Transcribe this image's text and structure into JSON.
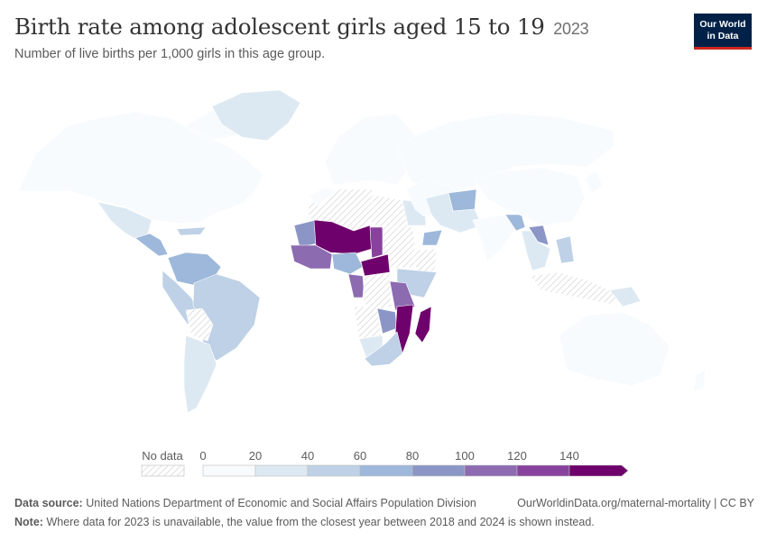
{
  "header": {
    "title": "Birth rate among adolescent girls aged 15 to 19",
    "year": "2023",
    "subtitle": "Number of live births per 1,000 girls in this age group."
  },
  "logo": {
    "line1": "Our World",
    "line2": "in Data"
  },
  "legend": {
    "no_data_label": "No data",
    "ticks": [
      "0",
      "20",
      "40",
      "60",
      "80",
      "100",
      "120",
      "140"
    ],
    "bins": [
      {
        "from": 0,
        "to": 20,
        "color": "#f7fbfd"
      },
      {
        "from": 20,
        "to": 40,
        "color": "#dde9f2"
      },
      {
        "from": 40,
        "to": 60,
        "color": "#bed1e6"
      },
      {
        "from": 60,
        "to": 80,
        "color": "#9db8da"
      },
      {
        "from": 80,
        "to": 100,
        "color": "#8c96c6"
      },
      {
        "from": 100,
        "to": 120,
        "color": "#8c6bb1"
      },
      {
        "from": 120,
        "to": 140,
        "color": "#88419d"
      },
      {
        "from": 140,
        "to": null,
        "color": "#6e016b"
      }
    ]
  },
  "map": {
    "regions": [
      {
        "name": "North America",
        "bin": 0
      },
      {
        "name": "Greenland",
        "bin": 1
      },
      {
        "name": "Mexico",
        "bin": 1
      },
      {
        "name": "Central America",
        "bin": 3
      },
      {
        "name": "Caribbean",
        "bin": 2
      },
      {
        "name": "Colombia & Venezuela",
        "bin": 3
      },
      {
        "name": "Peru & Ecuador",
        "bin": 2
      },
      {
        "name": "Brazil",
        "bin": 2
      },
      {
        "name": "Bolivia",
        "bin": null
      },
      {
        "name": "Argentina & Chile",
        "bin": 1
      },
      {
        "name": "Europe",
        "bin": 0
      },
      {
        "name": "Russia & Central Asia",
        "bin": 0
      },
      {
        "name": "Western Sahara & Algeria",
        "bin": null
      },
      {
        "name": "Morocco",
        "bin": 0
      },
      {
        "name": "Libya",
        "bin": null
      },
      {
        "name": "Egypt",
        "bin": 1
      },
      {
        "name": "Mauritania",
        "bin": 4
      },
      {
        "name": "Mali & Niger",
        "bin": 7
      },
      {
        "name": "Chad",
        "bin": 6
      },
      {
        "name": "Sudan",
        "bin": null
      },
      {
        "name": "West Africa coast",
        "bin": 5
      },
      {
        "name": "Nigeria",
        "bin": 3
      },
      {
        "name": "Central African Republic",
        "bin": 7
      },
      {
        "name": "Ethiopia",
        "bin": null
      },
      {
        "name": "Cameroon & Gabon",
        "bin": 5
      },
      {
        "name": "DR Congo",
        "bin": null
      },
      {
        "name": "Kenya & Somalia",
        "bin": 2
      },
      {
        "name": "Tanzania",
        "bin": 5
      },
      {
        "name": "Angola",
        "bin": null
      },
      {
        "name": "Zambia",
        "bin": 4
      },
      {
        "name": "Mozambique",
        "bin": 7
      },
      {
        "name": "Madagascar",
        "bin": 7
      },
      {
        "name": "Namibia",
        "bin": 1
      },
      {
        "name": "Southern Africa",
        "bin": 2
      },
      {
        "name": "Middle East",
        "bin": 0
      },
      {
        "name": "Yemen",
        "bin": 3
      },
      {
        "name": "Afghanistan",
        "bin": 3
      },
      {
        "name": "Iran & Pakistan",
        "bin": 1
      },
      {
        "name": "India",
        "bin": 0
      },
      {
        "name": "Bangladesh",
        "bin": 3
      },
      {
        "name": "China & Mongolia",
        "bin": 0
      },
      {
        "name": "Laos",
        "bin": 4
      },
      {
        "name": "Mainland Southeast Asia",
        "bin": 1
      },
      {
        "name": "Philippines",
        "bin": 2
      },
      {
        "name": "Indonesia",
        "bin": null
      },
      {
        "name": "Papua New Guinea",
        "bin": 1
      },
      {
        "name": "Australia",
        "bin": 0
      },
      {
        "name": "New Zealand",
        "bin": 0
      },
      {
        "name": "Japan",
        "bin": 0
      }
    ]
  },
  "footer": {
    "source_label": "Data source:",
    "source_text": "United Nations Department of Economic and Social Affairs Population Division",
    "url_text": "OurWorldinData.org/maternal-mortality | CC BY",
    "note_label": "Note:",
    "note_text": "Where data for 2023 is unavailable, the value from the closest year between 2018 and 2024 is shown instead."
  }
}
